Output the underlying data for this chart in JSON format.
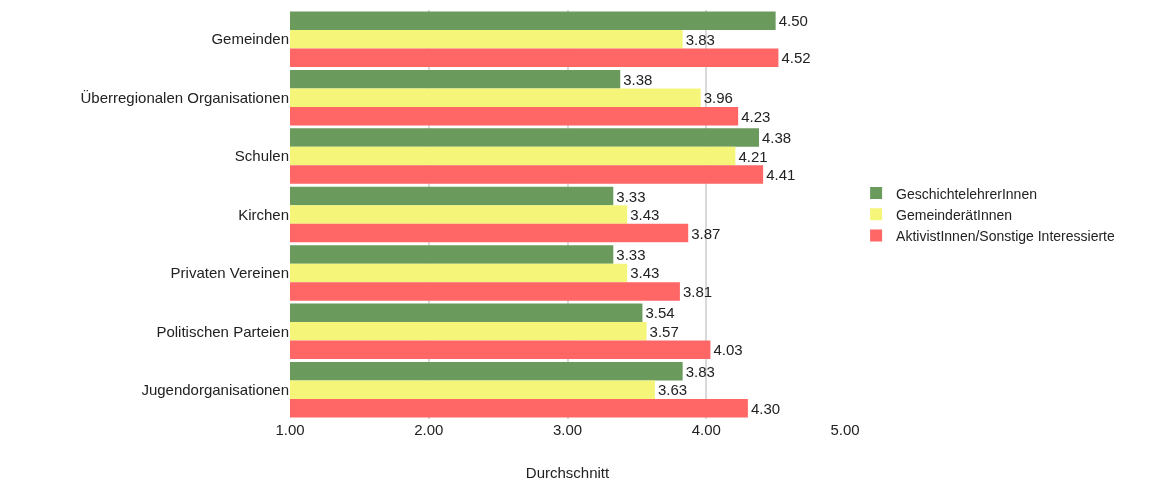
{
  "chart_data": {
    "type": "bar",
    "orientation": "horizontal",
    "xlabel": "Durchschnitt",
    "categories": [
      "Gemeinden",
      "Überregionalen Organisationen",
      "Schulen",
      "Kirchen",
      "Privaten Vereinen",
      "Politischen Parteien",
      "Jugendorganisationen"
    ],
    "series": [
      {
        "name": "GeschichtelehrerInnen",
        "color": "#6a9a5c",
        "values": [
          4.5,
          3.38,
          4.38,
          3.33,
          3.33,
          3.54,
          3.83
        ],
        "value_labels": [
          "4.50",
          "3.38",
          "4.38",
          "3.33",
          "3.33",
          "3.54",
          "3.83"
        ]
      },
      {
        "name": "GemeinderätInnen",
        "color": "#f5f57a",
        "values": [
          3.83,
          3.96,
          4.21,
          3.43,
          3.43,
          3.57,
          3.63
        ],
        "value_labels": [
          "3.83",
          "3.96",
          "4.21",
          "3.43",
          "3.43",
          "3.57",
          "3.63"
        ]
      },
      {
        "name": "AktivistInnen/Sonstige Interessierte",
        "color": "#ff6666",
        "values": [
          4.52,
          4.23,
          4.41,
          3.87,
          3.81,
          4.03,
          4.3
        ],
        "value_labels": [
          "4.52",
          "4.23",
          "4.41",
          "3.87",
          "3.81",
          "4.03",
          "4.30"
        ]
      }
    ],
    "xlim": [
      1,
      5
    ],
    "xticks": [
      {
        "value": 1,
        "label": "1.00"
      },
      {
        "value": 2,
        "label": "2.00"
      },
      {
        "value": 3,
        "label": "3.00"
      },
      {
        "value": 4,
        "label": "4.00"
      },
      {
        "value": 5,
        "label": "5.00"
      }
    ],
    "grid": "x",
    "legend": "right"
  }
}
